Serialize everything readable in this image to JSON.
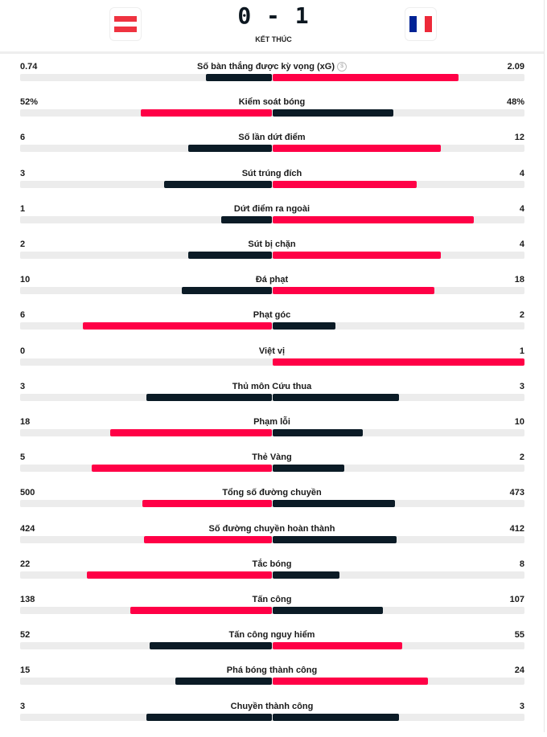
{
  "match": {
    "home_team": "Austria",
    "away_team": "France",
    "home_flag_colors": [
      "#ef3340",
      "#ffffff",
      "#ef3340"
    ],
    "away_flag_colors": [
      "#002395",
      "#ffffff",
      "#ed2939"
    ],
    "home_score": "0",
    "away_score": "1",
    "score_text": "0 - 1",
    "status": "KẾT THÚC"
  },
  "colors": {
    "leader": "#ff0046",
    "trailer": "#0b1b26",
    "track": "#ececec"
  },
  "stats": [
    {
      "label": "Số bàn thắng được kỳ vọng (xG)",
      "home": "0.74",
      "away": "2.09",
      "home_num": 0.74,
      "away_num": 2.09,
      "info_icon": true
    },
    {
      "label": "Kiểm soát bóng",
      "home": "52%",
      "away": "48%",
      "home_num": 52,
      "away_num": 48
    },
    {
      "label": "Số lần dứt điểm",
      "home": "6",
      "away": "12",
      "home_num": 6,
      "away_num": 12
    },
    {
      "label": "Sút trúng đích",
      "home": "3",
      "away": "4",
      "home_num": 3,
      "away_num": 4
    },
    {
      "label": "Dứt điểm ra ngoài",
      "home": "1",
      "away": "4",
      "home_num": 1,
      "away_num": 4
    },
    {
      "label": "Sút bị chặn",
      "home": "2",
      "away": "4",
      "home_num": 2,
      "away_num": 4
    },
    {
      "label": "Đá phạt",
      "home": "10",
      "away": "18",
      "home_num": 10,
      "away_num": 18
    },
    {
      "label": "Phạt góc",
      "home": "6",
      "away": "2",
      "home_num": 6,
      "away_num": 2
    },
    {
      "label": "Việt vị",
      "home": "0",
      "away": "1",
      "home_num": 0,
      "away_num": 1
    },
    {
      "label": "Thủ môn Cứu thua",
      "home": "3",
      "away": "3",
      "home_num": 3,
      "away_num": 3
    },
    {
      "label": "Phạm lỗi",
      "home": "18",
      "away": "10",
      "home_num": 18,
      "away_num": 10
    },
    {
      "label": "Thẻ Vàng",
      "home": "5",
      "away": "2",
      "home_num": 5,
      "away_num": 2
    },
    {
      "label": "Tổng số đường chuyền",
      "home": "500",
      "away": "473",
      "home_num": 500,
      "away_num": 473
    },
    {
      "label": "Số đường chuyền hoàn thành",
      "home": "424",
      "away": "412",
      "home_num": 424,
      "away_num": 412
    },
    {
      "label": "Tắc bóng",
      "home": "22",
      "away": "8",
      "home_num": 22,
      "away_num": 8
    },
    {
      "label": "Tấn công",
      "home": "138",
      "away": "107",
      "home_num": 138,
      "away_num": 107
    },
    {
      "label": "Tấn công nguy hiểm",
      "home": "52",
      "away": "55",
      "home_num": 52,
      "away_num": 55
    },
    {
      "label": "Phá bóng thành công",
      "home": "15",
      "away": "24",
      "home_num": 15,
      "away_num": 24
    },
    {
      "label": "Chuyền thành công",
      "home": "3",
      "away": "3",
      "home_num": 3,
      "away_num": 3
    }
  ]
}
